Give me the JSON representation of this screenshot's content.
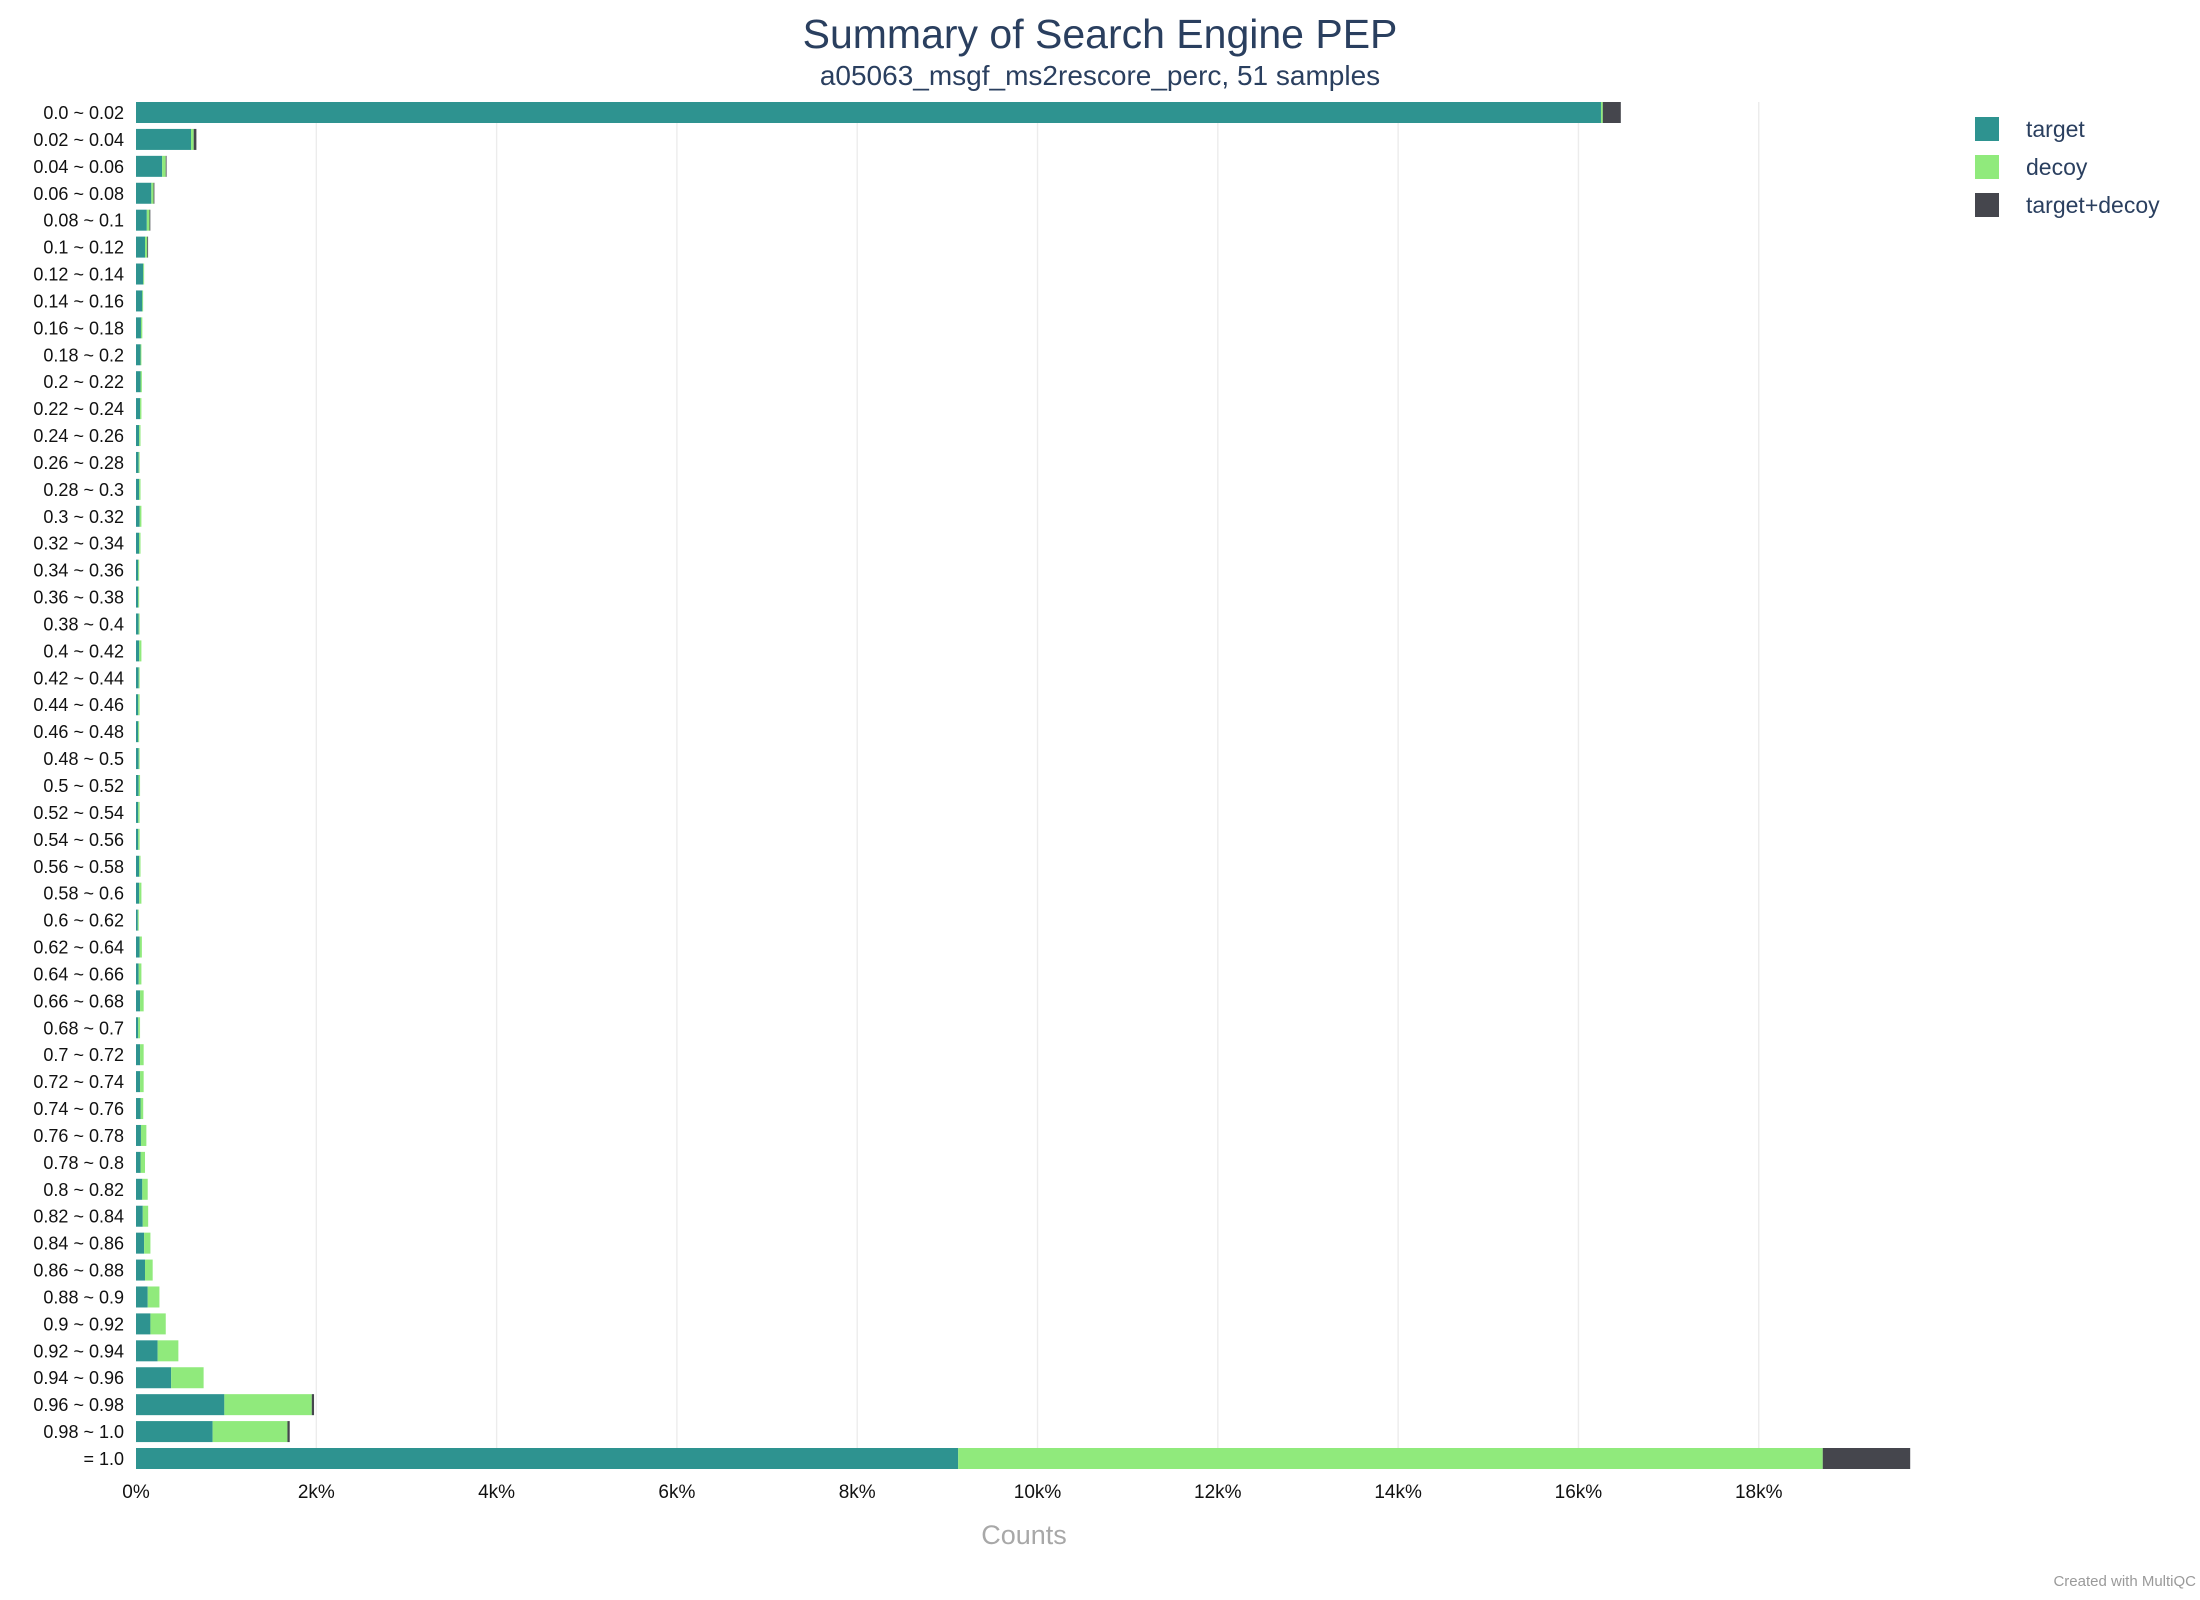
{
  "chart_data": {
    "type": "bar",
    "orientation": "horizontal",
    "stacked": true,
    "title": "Summary of Search Engine PEP",
    "subtitle": "a05063_msgf_ms2rescore_perc, 51 samples",
    "xlabel": "Counts",
    "ylabel": "",
    "xlim": [
      0,
      19700
    ],
    "x_ticks": [
      0,
      2000,
      4000,
      6000,
      8000,
      10000,
      12000,
      14000,
      16000,
      18000
    ],
    "x_tick_labels": [
      "0%",
      "2k%",
      "4k%",
      "6k%",
      "8k%",
      "10k%",
      "12k%",
      "14k%",
      "16k%",
      "18k%"
    ],
    "grid": true,
    "legend_position": "top-right",
    "categories": [
      "0.0 ~ 0.02",
      "0.02 ~ 0.04",
      "0.04 ~ 0.06",
      "0.06 ~ 0.08",
      "0.08 ~ 0.1",
      "0.1 ~ 0.12",
      "0.12 ~ 0.14",
      "0.14 ~ 0.16",
      "0.16 ~ 0.18",
      "0.18 ~ 0.2",
      "0.2 ~ 0.22",
      "0.22 ~ 0.24",
      "0.24 ~ 0.26",
      "0.26 ~ 0.28",
      "0.28 ~ 0.3",
      "0.3 ~ 0.32",
      "0.32 ~ 0.34",
      "0.34 ~ 0.36",
      "0.36 ~ 0.38",
      "0.38 ~ 0.4",
      "0.4 ~ 0.42",
      "0.42 ~ 0.44",
      "0.44 ~ 0.46",
      "0.46 ~ 0.48",
      "0.48 ~ 0.5",
      "0.5 ~ 0.52",
      "0.52 ~ 0.54",
      "0.54 ~ 0.56",
      "0.56 ~ 0.58",
      "0.58 ~ 0.6",
      "0.6 ~ 0.62",
      "0.62 ~ 0.64",
      "0.64 ~ 0.66",
      "0.66 ~ 0.68",
      "0.68 ~ 0.7",
      "0.7 ~ 0.72",
      "0.72 ~ 0.74",
      "0.74 ~ 0.76",
      "0.76 ~ 0.78",
      "0.78 ~ 0.8",
      "0.8 ~ 0.82",
      "0.82 ~ 0.84",
      "0.84 ~ 0.86",
      "0.86 ~ 0.88",
      "0.88 ~ 0.9",
      "0.9 ~ 0.92",
      "0.92 ~ 0.94",
      "0.94 ~ 0.96",
      "0.96 ~ 0.98",
      "0.98 ~ 1.0",
      "= 1.0"
    ],
    "series": [
      {
        "name": "target",
        "color": "#2e9390",
        "values": [
          16250,
          610,
          290,
          170,
          120,
          100,
          80,
          70,
          55,
          50,
          50,
          45,
          35,
          30,
          35,
          40,
          35,
          25,
          25,
          30,
          35,
          30,
          25,
          25,
          30,
          30,
          25,
          25,
          35,
          35,
          20,
          40,
          30,
          45,
          25,
          45,
          45,
          50,
          55,
          50,
          70,
          75,
          90,
          100,
          130,
          160,
          240,
          390,
          980,
          850,
          9120
        ]
      },
      {
        "name": "decoy",
        "color": "#90ea7c",
        "values": [
          20,
          30,
          40,
          25,
          30,
          25,
          10,
          5,
          15,
          10,
          15,
          15,
          15,
          10,
          15,
          20,
          15,
          10,
          10,
          10,
          25,
          10,
          15,
          10,
          10,
          15,
          15,
          15,
          15,
          25,
          10,
          25,
          30,
          40,
          20,
          40,
          40,
          30,
          60,
          50,
          60,
          60,
          70,
          85,
          130,
          170,
          230,
          360,
          970,
          830,
          9590
        ]
      },
      {
        "name": "target+decoy",
        "color": "#45464d",
        "values": [
          200,
          30,
          5,
          5,
          5,
          5,
          0,
          0,
          0,
          0,
          0,
          0,
          0,
          0,
          0,
          0,
          0,
          0,
          0,
          0,
          0,
          0,
          0,
          0,
          0,
          0,
          0,
          0,
          0,
          0,
          0,
          0,
          0,
          0,
          0,
          0,
          0,
          0,
          0,
          0,
          0,
          0,
          0,
          0,
          0,
          0,
          0,
          0,
          25,
          25,
          970
        ]
      }
    ]
  },
  "credit": "Created with MultiQC"
}
